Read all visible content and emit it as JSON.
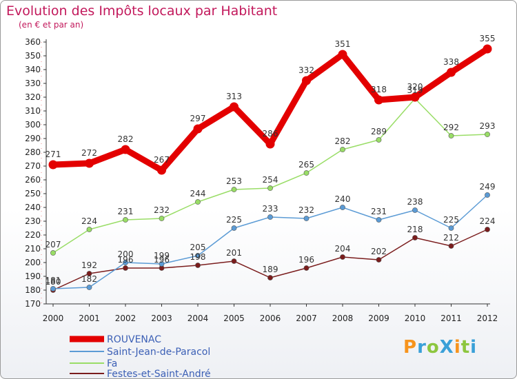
{
  "chart_data": {
    "type": "line",
    "title": "Evolution des Impôts locaux par Habitant",
    "subtitle": "(en € et par an)",
    "categories": [
      "2000",
      "2001",
      "2002",
      "2003",
      "2004",
      "2005",
      "2006",
      "2007",
      "2008",
      "2009",
      "2010",
      "2011",
      "2012"
    ],
    "yticks": [
      170,
      180,
      190,
      200,
      210,
      220,
      230,
      240,
      250,
      260,
      270,
      280,
      290,
      300,
      310,
      320,
      330,
      340,
      350,
      360
    ],
    "ylim": [
      170,
      360
    ],
    "grid": false,
    "series": [
      {
        "name": "ROUVENAC",
        "color": "#e30000",
        "values": [
          271,
          272,
          282,
          267,
          297,
          313,
          286,
          332,
          351,
          318,
          320,
          338,
          355
        ]
      },
      {
        "name": "Saint-Jean-de-Paracol",
        "color": "#5b9bd5",
        "values": [
          181,
          182,
          200,
          199,
          205,
          225,
          233,
          232,
          240,
          231,
          238,
          225,
          249
        ]
      },
      {
        "name": "Fa",
        "color": "#99dd66",
        "values": [
          207,
          224,
          231,
          232,
          244,
          253,
          254,
          265,
          282,
          289,
          319,
          292,
          293
        ]
      },
      {
        "name": "Festes-et-Saint-André",
        "color": "#7a1c1c",
        "values": [
          180,
          192,
          196,
          196,
          198,
          201,
          189,
          196,
          204,
          202,
          218,
          212,
          224
        ]
      }
    ]
  },
  "logo": {
    "text": "ProXiti",
    "letters": [
      "P",
      "r",
      "o",
      "X",
      "i",
      "t",
      "i"
    ],
    "colors": [
      "#f7941d",
      "#3aa0d8",
      "#8dc63f",
      "#3aa0d8",
      "#f7941d",
      "#8dc63f",
      "#3aa0d8"
    ]
  }
}
